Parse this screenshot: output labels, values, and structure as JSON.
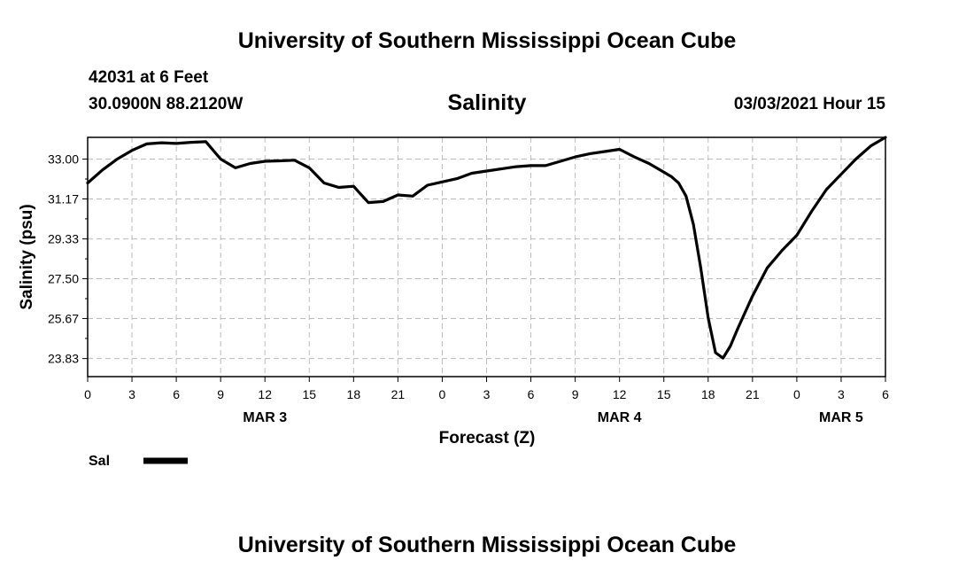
{
  "header": {
    "title": "University of Southern Mississippi Ocean Cube",
    "station": "42031 at 6 Feet",
    "location": "30.0900N 88.2120W",
    "variable": "Salinity",
    "datetime": "03/03/2021 Hour 15"
  },
  "footer": {
    "title": "University of Southern Mississippi Ocean Cube"
  },
  "chart_data": {
    "type": "line",
    "title": "Salinity",
    "xlabel": "Forecast (Z)",
    "ylabel": "Salinity (psu)",
    "xlim": [
      0,
      54
    ],
    "ylim": [
      23,
      34.0
    ],
    "grid": true,
    "line_color": "#000000",
    "grid_color": "#bbbbbb",
    "yticks": [
      "33.00",
      "31.17",
      "29.33",
      "27.50",
      "25.67",
      "23.83"
    ],
    "ytick_values": [
      33.0,
      31.17,
      29.33,
      27.5,
      25.67,
      23.83
    ],
    "xticks": [
      "0",
      "3",
      "6",
      "9",
      "12",
      "15",
      "18",
      "21",
      "0",
      "3",
      "6",
      "9",
      "12",
      "15",
      "18",
      "21",
      "0",
      "3",
      "6"
    ],
    "xtick_values": [
      0,
      3,
      6,
      9,
      12,
      15,
      18,
      21,
      24,
      27,
      30,
      33,
      36,
      39,
      42,
      45,
      48,
      51,
      54
    ],
    "date_labels": [
      {
        "text": "MAR 3",
        "x": 12
      },
      {
        "text": "MAR 4",
        "x": 36
      },
      {
        "text": "MAR 5",
        "x": 51
      }
    ],
    "legend": {
      "label": "Sal",
      "placement": "bottom-left"
    },
    "series": [
      {
        "name": "Sal",
        "x": [
          0,
          1,
          2,
          3,
          4,
          5,
          6,
          7,
          8,
          9,
          10,
          11,
          12,
          13,
          14,
          15,
          16,
          17,
          18,
          19,
          20,
          21,
          22,
          23,
          24,
          25,
          26,
          27,
          28,
          29,
          30,
          31,
          32,
          33,
          34,
          35,
          36,
          37,
          38,
          39,
          39.5,
          40,
          40.5,
          41,
          41.5,
          42,
          42.5,
          43,
          43.5,
          44,
          45,
          46,
          47,
          48,
          49,
          50,
          51,
          52,
          53,
          54
        ],
        "y": [
          31.9,
          32.5,
          33.0,
          33.4,
          33.7,
          33.75,
          33.72,
          33.77,
          33.8,
          33.0,
          32.6,
          32.8,
          32.9,
          32.92,
          32.95,
          32.6,
          31.9,
          31.7,
          31.75,
          31.0,
          31.05,
          31.35,
          31.3,
          31.8,
          31.95,
          32.1,
          32.35,
          32.45,
          32.55,
          32.65,
          32.7,
          32.7,
          32.9,
          33.1,
          33.25,
          33.35,
          33.45,
          33.1,
          32.8,
          32.4,
          32.2,
          31.9,
          31.3,
          30.0,
          28.0,
          25.7,
          24.1,
          23.85,
          24.4,
          25.2,
          26.7,
          28.0,
          28.8,
          29.5,
          30.6,
          31.6,
          32.3,
          33.0,
          33.6,
          34.0
        ]
      }
    ]
  }
}
